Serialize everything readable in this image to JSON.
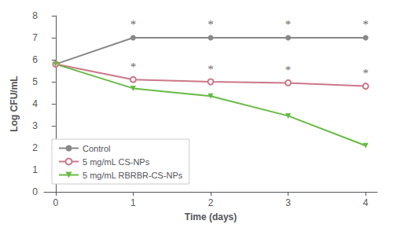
{
  "chart_data": {
    "type": "line",
    "xlabel": "Time (days)",
    "ylabel": "Log CFU/mL",
    "x": [
      0,
      1,
      2,
      3,
      4
    ],
    "series": [
      {
        "name": "Control",
        "color": "#888888",
        "marker": "circle",
        "values": [
          5.8,
          7.0,
          7.0,
          7.0,
          7.0
        ]
      },
      {
        "name": "5 mg/mL CS-NPs",
        "color": "#cc7788",
        "marker": "open_circle",
        "values": [
          5.8,
          5.1,
          5.0,
          4.95,
          4.8
        ]
      },
      {
        "name": "5 mg/mL RBRBR-CS-NPs",
        "color": "#66bb44",
        "marker": "triangle_down",
        "values": [
          5.8,
          4.7,
          4.35,
          3.45,
          2.1
        ]
      }
    ],
    "xlim": [
      -0.15,
      4.15
    ],
    "xticks": [
      0,
      1,
      2,
      3,
      4
    ],
    "ylim": [
      0,
      8
    ],
    "yticks": [
      0,
      1,
      2,
      3,
      4,
      5,
      6,
      7,
      8
    ],
    "grid": false,
    "legend": "lower left",
    "annotations": [
      {
        "x": 1,
        "y": 7.35,
        "text": "*"
      },
      {
        "x": 2,
        "y": 7.35,
        "text": "*"
      },
      {
        "x": 3,
        "y": 7.35,
        "text": "*"
      },
      {
        "x": 4,
        "y": 7.35,
        "text": "*"
      },
      {
        "x": 1,
        "y": 5.42,
        "text": "*"
      },
      {
        "x": 2,
        "y": 5.32,
        "text": "*"
      },
      {
        "x": 3,
        "y": 5.27,
        "text": "*"
      },
      {
        "x": 4,
        "y": 5.12,
        "text": "*"
      }
    ]
  }
}
